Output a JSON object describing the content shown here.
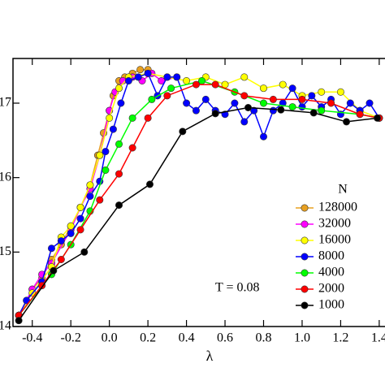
{
  "chart_data": {
    "type": "line",
    "x_label": "λ",
    "annotation": "T = 0.08",
    "legend_title": "N",
    "legend": "right",
    "xlim": [
      -0.5,
      1.43
    ],
    "ylim": [
      14,
      17.6
    ],
    "xticks": [
      -0.4,
      -0.2,
      {
        "value": 0,
        "label": "0.0"
      },
      0.2,
      0.4,
      0.6,
      0.8,
      {
        "value": 1,
        "label": "1.0"
      },
      1.2,
      1.4
    ],
    "yticks": [
      14,
      15,
      16,
      17
    ],
    "series": [
      {
        "name": "128000",
        "color": "#e8a020",
        "x": [
          -0.47,
          -0.4,
          -0.35,
          -0.3,
          -0.25,
          -0.2,
          -0.15,
          -0.1,
          -0.06,
          -0.03,
          0.0,
          0.02,
          0.05,
          0.08,
          0.12,
          0.16,
          0.2
        ],
        "values": [
          14.15,
          14.5,
          14.65,
          14.9,
          15.1,
          15.35,
          15.6,
          15.9,
          16.3,
          16.6,
          16.9,
          17.1,
          17.3,
          17.35,
          17.4,
          17.45,
          17.45
        ]
      },
      {
        "name": "32000",
        "color": "#ff00ff",
        "x": [
          -0.47,
          -0.4,
          -0.35,
          -0.3,
          -0.2,
          -0.15,
          -0.1,
          -0.05,
          0.0,
          0.03,
          0.07,
          0.12,
          0.17,
          0.22,
          0.27,
          0.35
        ],
        "values": [
          14.15,
          14.5,
          14.7,
          14.85,
          15.3,
          15.6,
          15.85,
          16.3,
          16.9,
          17.15,
          17.3,
          17.35,
          17.3,
          17.4,
          17.3,
          17.35
        ]
      },
      {
        "name": "16000",
        "color": "#ffff00",
        "x": [
          -0.47,
          -0.4,
          -0.3,
          -0.25,
          -0.2,
          -0.15,
          -0.1,
          -0.05,
          0.0,
          0.05,
          0.1,
          0.2,
          0.3,
          0.4,
          0.5,
          0.6,
          0.7,
          0.8,
          0.9,
          1.0,
          1.1,
          1.2,
          1.3,
          1.4
        ],
        "values": [
          14.15,
          14.45,
          14.8,
          15.2,
          15.35,
          15.6,
          15.9,
          16.3,
          16.8,
          17.2,
          17.35,
          17.4,
          17.35,
          17.3,
          17.35,
          17.25,
          17.35,
          17.2,
          17.25,
          17.1,
          17.15,
          17.15,
          16.9,
          16.8
        ]
      },
      {
        "name": "8000",
        "color": "#0000ff",
        "x": [
          -0.47,
          -0.43,
          -0.35,
          -0.3,
          -0.25,
          -0.2,
          -0.15,
          -0.1,
          -0.05,
          -0.02,
          0.02,
          0.06,
          0.1,
          0.15,
          0.2,
          0.25,
          0.3,
          0.35,
          0.4,
          0.45,
          0.5,
          0.55,
          0.6,
          0.65,
          0.7,
          0.75,
          0.8,
          0.85,
          0.9,
          0.95,
          1.0,
          1.05,
          1.1,
          1.15,
          1.2,
          1.25,
          1.3,
          1.35,
          1.4
        ],
        "values": [
          14.15,
          14.35,
          14.6,
          15.05,
          15.15,
          15.25,
          15.45,
          15.75,
          15.95,
          16.35,
          16.65,
          17.0,
          17.3,
          17.35,
          17.4,
          17.1,
          17.35,
          17.35,
          17.0,
          16.9,
          17.05,
          16.9,
          16.85,
          17.0,
          16.75,
          16.9,
          16.55,
          16.9,
          17.0,
          17.2,
          16.95,
          17.1,
          16.95,
          17.05,
          16.85,
          17.0,
          16.9,
          17.0,
          16.8
        ]
      },
      {
        "name": "4000",
        "color": "#00ff00",
        "x": [
          -0.47,
          -0.3,
          -0.2,
          -0.1,
          -0.02,
          0.05,
          0.12,
          0.22,
          0.32,
          0.48,
          0.65,
          0.8,
          0.95,
          1.1,
          1.3,
          1.4
        ],
        "values": [
          14.15,
          14.7,
          15.1,
          15.55,
          16.1,
          16.45,
          16.8,
          17.05,
          17.2,
          17.3,
          17.15,
          17.0,
          16.95,
          16.9,
          16.85,
          16.8
        ]
      },
      {
        "name": "2000",
        "color": "#ff0000",
        "x": [
          -0.47,
          -0.35,
          -0.25,
          -0.15,
          -0.05,
          0.05,
          0.12,
          0.2,
          0.3,
          0.45,
          0.55,
          0.7,
          0.85,
          1.0,
          1.15,
          1.3,
          1.4
        ],
        "values": [
          14.15,
          14.55,
          14.9,
          15.3,
          15.7,
          16.05,
          16.4,
          16.8,
          17.1,
          17.25,
          17.25,
          17.1,
          17.05,
          17.05,
          17.0,
          16.85,
          16.8
        ]
      },
      {
        "name": "1000",
        "color": "#000000",
        "x": [
          -0.47,
          -0.29,
          -0.13,
          0.05,
          0.21,
          0.38,
          0.55,
          0.72,
          0.89,
          1.06,
          1.23,
          1.39
        ],
        "values": [
          14.08,
          14.75,
          15.0,
          15.63,
          15.91,
          16.62,
          16.86,
          16.94,
          16.91,
          16.87,
          16.75,
          16.8
        ]
      }
    ]
  }
}
